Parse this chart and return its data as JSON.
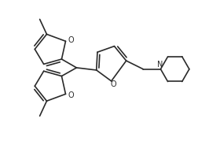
{
  "bg_color": "#ffffff",
  "line_color": "#2a2a2a",
  "line_width": 1.2,
  "fig_width": 2.53,
  "fig_height": 1.84,
  "dpi": 100,
  "xlim": [
    0,
    10
  ],
  "ylim": [
    0,
    7.26
  ],
  "O_label_fontsize": 7,
  "N_label_fontsize": 7,
  "methyl_label": ""
}
